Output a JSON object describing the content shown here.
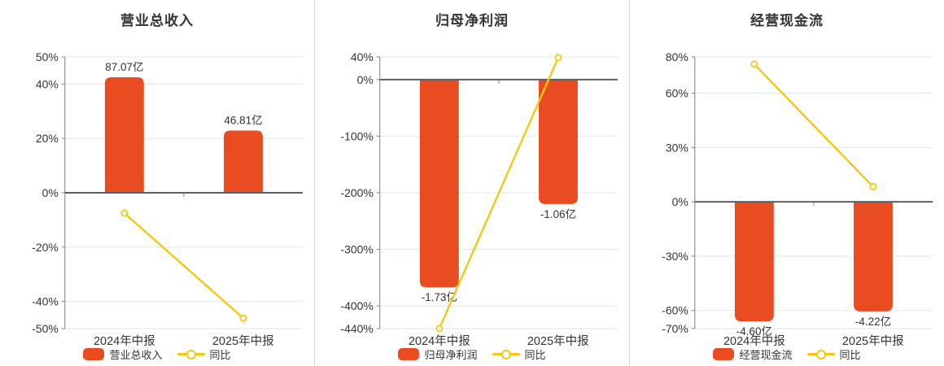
{
  "colors": {
    "bar": "#e84c20",
    "line": "#f4c812",
    "grid": "#dfe7ef",
    "axis": "#7a7f85",
    "zero_line": "#5b6066",
    "text": "#333333",
    "separator": "#d6d6d6",
    "background": "#ffffff",
    "marker_fill": "#ffffff"
  },
  "chart_data": [
    {
      "type": "bar+line",
      "title": "营业总收入",
      "categories": [
        "2024年中报",
        "2025年中报"
      ],
      "series_name": "营业总收入",
      "line_name": "同比",
      "unit": "亿",
      "bar_values_yi": [
        87.07,
        46.81
      ],
      "bar_labels": [
        "87.07亿",
        "46.81亿"
      ],
      "bar_plot_pct": [
        42.5,
        22.9
      ],
      "line_pct": [
        -7.5,
        -46.2
      ],
      "y_ticks": [
        50,
        40,
        20,
        0,
        -20,
        -40,
        -50
      ],
      "ylim": [
        -50,
        50
      ],
      "grid": true,
      "legend_position": "bottom"
    },
    {
      "type": "bar+line",
      "title": "归母净利润",
      "categories": [
        "2024年中报",
        "2025年中报"
      ],
      "series_name": "归母净利润",
      "line_name": "同比",
      "unit": "亿",
      "bar_values_yi": [
        -1.73,
        -1.06
      ],
      "bar_labels": [
        "-1.73亿",
        "-1.06亿"
      ],
      "bar_plot_pct": [
        -367,
        -220
      ],
      "line_pct": [
        -440,
        38.7
      ],
      "y_ticks": [
        40,
        0,
        -100,
        -200,
        -300,
        -400,
        -440
      ],
      "ylim": [
        -440,
        40
      ],
      "grid": true,
      "legend_position": "bottom"
    },
    {
      "type": "bar+line",
      "title": "经营现金流",
      "categories": [
        "2024年中报",
        "2025年中报"
      ],
      "series_name": "经营现金流",
      "line_name": "同比",
      "unit": "亿",
      "bar_values_yi": [
        -4.6,
        -4.22
      ],
      "bar_labels": [
        "-4.60亿",
        "-4.22亿"
      ],
      "bar_plot_pct": [
        -66,
        -60.5
      ],
      "line_pct": [
        76,
        8.3
      ],
      "y_ticks": [
        80,
        60,
        30,
        0,
        -30,
        -60,
        -70
      ],
      "ylim": [
        -70,
        80
      ],
      "grid": true,
      "legend_position": "bottom"
    }
  ]
}
